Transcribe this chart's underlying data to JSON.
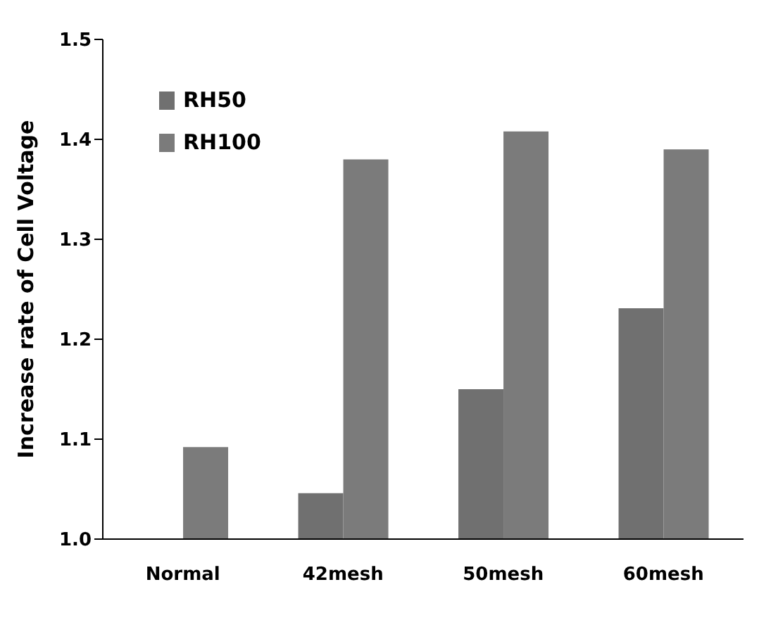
{
  "chart_data": {
    "type": "bar",
    "ylabel": "Increase rate of Cell Voltage",
    "categories": [
      "Normal",
      "42mesh",
      "50mesh",
      "60mesh"
    ],
    "series": [
      {
        "name": "RH50",
        "color": "#707070",
        "values": [
          null,
          1.046,
          1.15,
          1.231
        ]
      },
      {
        "name": "RH100",
        "color": "#7b7b7b",
        "values": [
          1.092,
          1.38,
          1.408,
          1.39
        ]
      }
    ],
    "ylim": [
      1.0,
      1.5
    ],
    "yticks": [
      {
        "value": 1.0,
        "label": "1.0"
      },
      1.1,
      1.2,
      1.3,
      1.4,
      1.5
    ],
    "grid": false,
    "legend": "top left"
  }
}
